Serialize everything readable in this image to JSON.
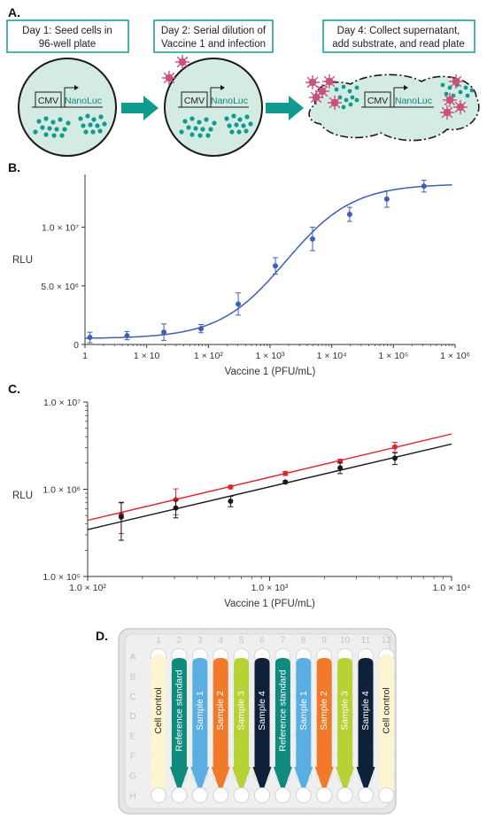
{
  "panel_labels": {
    "a": "A.",
    "b": "B.",
    "c": "C.",
    "d": "D."
  },
  "panel_a": {
    "step1": [
      "Day 1: Seed cells in",
      "96-well plate"
    ],
    "step2": [
      "Day 2: Serial dilution of",
      "Vaccine 1 and infection"
    ],
    "step3": [
      "Day 4: Collect supernatant,",
      "add substrate, and read plate"
    ],
    "promoter": "CMV",
    "reporter": "NanoLuc",
    "colors": {
      "teal": "#0f9b8e",
      "cell_fill": "#d3ebe2",
      "virus": "#c8517e"
    }
  },
  "chart_data": [
    {
      "type": "scatter",
      "panel": "B",
      "xlabel": "Vaccine 1 (PFU/mL)",
      "ylabel": "RLU",
      "xscale": "log",
      "xlim": [
        1,
        1000000
      ],
      "ylim": [
        0,
        14500000
      ],
      "x_tick_labels": [
        "1",
        "1 × 10",
        "1 × 10²",
        "1 × 10³",
        "1 × 10⁴",
        "1 × 10⁵",
        "1 × 10⁶"
      ],
      "y_tick_labels": [
        "0",
        "5.0 × 10⁶",
        "1.0 × 10⁷"
      ],
      "grid": false,
      "curve": "four-parameter logistic fit",
      "color": "#3f5fb0",
      "series": [
        {
          "x": [
            1.2,
            4.8,
            19,
            76,
            305,
            1220,
            4880,
            19500,
            78100,
            312000
          ],
          "y": [
            600000,
            750000,
            1050000,
            1350000,
            3450000,
            6700000,
            9000000,
            11100000,
            12400000,
            13500000
          ],
          "err": [
            450000,
            350000,
            700000,
            350000,
            950000,
            700000,
            1000000,
            600000,
            700000,
            500000
          ]
        }
      ],
      "fit": {
        "bottom": 500000,
        "top": 13700000,
        "ec50": 1800,
        "hill": 0.8
      }
    },
    {
      "type": "scatter",
      "panel": "C",
      "xlabel": "Vaccine 1 (PFU/mL)",
      "ylabel": "RLU",
      "xscale": "log",
      "yscale": "log",
      "xlim": [
        100,
        10000
      ],
      "ylim": [
        100000,
        10000000
      ],
      "x_tick_labels": [
        "1.0 × 10²",
        "1.0 × 10³",
        "1.0 × 10⁴"
      ],
      "y_tick_labels": [
        "1.0 × 10⁵",
        "1.0 × 10⁶",
        "1.0 × 10⁷"
      ],
      "grid": false,
      "series": [
        {
          "color": "#e0252a",
          "x": [
            153,
            305,
            610,
            1220,
            2440,
            4880
          ],
          "y": [
            510000,
            760000,
            1060000,
            1520000,
            2100000,
            3050000
          ],
          "err": [
            200000,
            250000,
            50000,
            80000,
            100000,
            400000
          ],
          "line_at_xlim": [
            440000,
            4300000
          ]
        },
        {
          "color": "#1a1a1a",
          "x": [
            153,
            305,
            610,
            1220,
            2440,
            4880
          ],
          "y": [
            480000,
            610000,
            730000,
            1210000,
            1760000,
            2270000
          ],
          "err": [
            220000,
            140000,
            100000,
            40000,
            250000,
            350000
          ],
          "line_at_xlim": [
            345000,
            3300000
          ]
        }
      ]
    }
  ],
  "panel_d": {
    "columns": [
      "1",
      "2",
      "3",
      "4",
      "5",
      "6",
      "7",
      "8",
      "9",
      "10",
      "11",
      "12"
    ],
    "rows": [
      "A",
      "B",
      "C",
      "D",
      "E",
      "F",
      "G",
      "H"
    ],
    "lanes": [
      {
        "label": "Cell control",
        "color": "#fdf5d2",
        "arrow": false,
        "text_color": "#222222"
      },
      {
        "label": "Reference standard",
        "color": "#0f8a7c",
        "arrow": true,
        "text_color": "#ffffff"
      },
      {
        "label": "Sample 1",
        "color": "#5aaee2",
        "arrow": true,
        "text_color": "#ffffff"
      },
      {
        "label": "Sample 2",
        "color": "#f07a2a",
        "arrow": true,
        "text_color": "#ffffff"
      },
      {
        "label": "Sample 3",
        "color": "#b6d234",
        "arrow": true,
        "text_color": "#ffffff"
      },
      {
        "label": "Sample 4",
        "color": "#0e2138",
        "arrow": true,
        "text_color": "#ffffff"
      },
      {
        "label": "Reference standard",
        "color": "#0f8a7c",
        "arrow": true,
        "text_color": "#ffffff"
      },
      {
        "label": "Sample 1",
        "color": "#5aaee2",
        "arrow": true,
        "text_color": "#ffffff"
      },
      {
        "label": "Sample 2",
        "color": "#f07a2a",
        "arrow": true,
        "text_color": "#ffffff"
      },
      {
        "label": "Sample 3",
        "color": "#b6d234",
        "arrow": true,
        "text_color": "#ffffff"
      },
      {
        "label": "Sample 4",
        "color": "#0e2138",
        "arrow": true,
        "text_color": "#ffffff"
      },
      {
        "label": "Cell control",
        "color": "#fdf5d2",
        "arrow": false,
        "text_color": "#222222"
      }
    ]
  }
}
